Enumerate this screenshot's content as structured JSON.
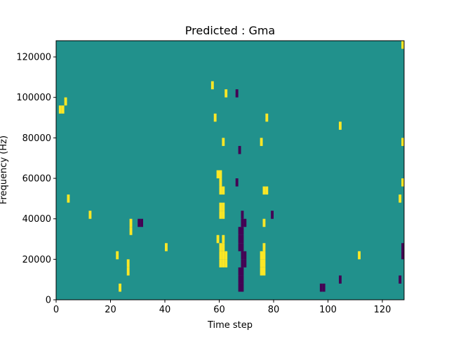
{
  "chart_data": {
    "type": "heatmap",
    "title": "Predicted : Gma",
    "xlabel": "Time step",
    "ylabel": "Frequency (Hz)",
    "xlim": [
      0,
      128
    ],
    "ylim": [
      0,
      128000
    ],
    "x_ticks": [
      0,
      20,
      40,
      60,
      80,
      100,
      120
    ],
    "y_ticks": [
      0,
      20000,
      40000,
      60000,
      80000,
      100000,
      120000
    ],
    "x_tick_labels": [
      "0",
      "20",
      "40",
      "60",
      "80",
      "100",
      "120"
    ],
    "y_tick_labels": [
      "0",
      "20000",
      "40000",
      "60000",
      "80000",
      "100000",
      "120000"
    ],
    "colormap": "viridis",
    "background_value": 0,
    "colors": {
      "low": "#440154",
      "mid": "#21918c",
      "high": "#fde725"
    },
    "rows": 32,
    "columns": 128,
    "row_height_hz": 4000,
    "cells": [
      {
        "t": 60,
        "f": 4,
        "v": 1
      },
      {
        "t": 61,
        "f": 4,
        "v": 1
      },
      {
        "t": 62,
        "f": 4,
        "v": 1
      },
      {
        "t": 60,
        "f": 5,
        "v": 1
      },
      {
        "t": 61,
        "f": 5,
        "v": 1
      },
      {
        "t": 62,
        "f": 5,
        "v": 1
      },
      {
        "t": 60,
        "f": 6,
        "v": 1
      },
      {
        "t": 61,
        "f": 6,
        "v": 1
      },
      {
        "t": 59,
        "f": 7,
        "v": 1
      },
      {
        "t": 61,
        "f": 7,
        "v": 1
      },
      {
        "t": 60,
        "f": 10,
        "v": 1
      },
      {
        "t": 61,
        "f": 10,
        "v": 1
      },
      {
        "t": 60,
        "f": 11,
        "v": 1
      },
      {
        "t": 61,
        "f": 11,
        "v": 1
      },
      {
        "t": 60,
        "f": 13,
        "v": 1
      },
      {
        "t": 61,
        "f": 13,
        "v": 1
      },
      {
        "t": 60,
        "f": 14,
        "v": 1
      },
      {
        "t": 59,
        "f": 15,
        "v": 1
      },
      {
        "t": 60,
        "f": 15,
        "v": 1
      },
      {
        "t": 61,
        "f": 19,
        "v": 1
      },
      {
        "t": 58,
        "f": 22,
        "v": 1
      },
      {
        "t": 57,
        "f": 26,
        "v": 1
      },
      {
        "t": 62,
        "f": 25,
        "v": 1
      },
      {
        "t": 67,
        "f": 1,
        "v": -1
      },
      {
        "t": 68,
        "f": 1,
        "v": -1
      },
      {
        "t": 67,
        "f": 2,
        "v": -1
      },
      {
        "t": 68,
        "f": 2,
        "v": -1
      },
      {
        "t": 67,
        "f": 3,
        "v": -1
      },
      {
        "t": 68,
        "f": 3,
        "v": -1
      },
      {
        "t": 68,
        "f": 4,
        "v": -1
      },
      {
        "t": 69,
        "f": 4,
        "v": -1
      },
      {
        "t": 68,
        "f": 5,
        "v": -1
      },
      {
        "t": 69,
        "f": 5,
        "v": -1
      },
      {
        "t": 67,
        "f": 6,
        "v": -1
      },
      {
        "t": 68,
        "f": 6,
        "v": -1
      },
      {
        "t": 67,
        "f": 7,
        "v": -1
      },
      {
        "t": 68,
        "f": 7,
        "v": -1
      },
      {
        "t": 67,
        "f": 8,
        "v": -1
      },
      {
        "t": 68,
        "f": 8,
        "v": -1
      },
      {
        "t": 68,
        "f": 9,
        "v": -1
      },
      {
        "t": 69,
        "f": 9,
        "v": -1
      },
      {
        "t": 68,
        "f": 10,
        "v": -1
      },
      {
        "t": 66,
        "f": 14,
        "v": -1
      },
      {
        "t": 67,
        "f": 18,
        "v": -1
      },
      {
        "t": 66,
        "f": 25,
        "v": -1
      },
      {
        "t": 75,
        "f": 3,
        "v": 1
      },
      {
        "t": 76,
        "f": 3,
        "v": 1
      },
      {
        "t": 75,
        "f": 4,
        "v": 1
      },
      {
        "t": 76,
        "f": 4,
        "v": 1
      },
      {
        "t": 75,
        "f": 5,
        "v": 1
      },
      {
        "t": 76,
        "f": 5,
        "v": 1
      },
      {
        "t": 76,
        "f": 6,
        "v": 1
      },
      {
        "t": 76,
        "f": 9,
        "v": 1
      },
      {
        "t": 76,
        "f": 13,
        "v": 1
      },
      {
        "t": 77,
        "f": 13,
        "v": 1
      },
      {
        "t": 75,
        "f": 19,
        "v": 1
      },
      {
        "t": 77,
        "f": 22,
        "v": 1
      },
      {
        "t": 79,
        "f": 10,
        "v": -1
      },
      {
        "t": 26,
        "f": 3,
        "v": 1
      },
      {
        "t": 26,
        "f": 4,
        "v": 1
      },
      {
        "t": 27,
        "f": 8,
        "v": 1
      },
      {
        "t": 27,
        "f": 9,
        "v": 1
      },
      {
        "t": 30,
        "f": 9,
        "v": -1
      },
      {
        "t": 31,
        "f": 9,
        "v": -1
      },
      {
        "t": 22,
        "f": 5,
        "v": 1
      },
      {
        "t": 23,
        "f": 1,
        "v": 1
      },
      {
        "t": 4,
        "f": 12,
        "v": 1
      },
      {
        "t": 1,
        "f": 23,
        "v": 1
      },
      {
        "t": 2,
        "f": 23,
        "v": 1
      },
      {
        "t": 3,
        "f": 24,
        "v": 1
      },
      {
        "t": 97,
        "f": 1,
        "v": -1
      },
      {
        "t": 98,
        "f": 1,
        "v": -1
      },
      {
        "t": 104,
        "f": 2,
        "v": -1
      },
      {
        "t": 127,
        "f": 5,
        "v": -1
      },
      {
        "t": 127,
        "f": 6,
        "v": -1
      },
      {
        "t": 126,
        "f": 12,
        "v": 1
      },
      {
        "t": 127,
        "f": 14,
        "v": 1
      },
      {
        "t": 127,
        "f": 19,
        "v": 1
      },
      {
        "t": 127,
        "f": 31,
        "v": 1
      },
      {
        "t": 126,
        "f": 2,
        "v": -1
      },
      {
        "t": 111,
        "f": 5,
        "v": 1
      },
      {
        "t": 104,
        "f": 21,
        "v": 1
      },
      {
        "t": 12,
        "f": 10,
        "v": 1
      },
      {
        "t": 40,
        "f": 6,
        "v": 1
      }
    ]
  }
}
